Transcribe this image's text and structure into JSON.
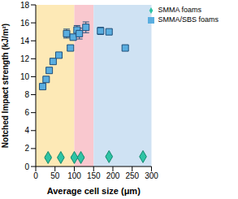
{
  "chart_data": {
    "type": "scatter",
    "xlabel": "Average cell size (μm)",
    "ylabel": "Notched Impact strength (kJ/m²)",
    "xlim": [
      0,
      300
    ],
    "xticks": [
      0,
      50,
      100,
      150,
      200,
      250,
      300
    ],
    "ylim": [
      0,
      18
    ],
    "yticks": [
      0,
      2,
      4,
      6,
      8,
      10,
      12,
      14,
      16,
      18
    ],
    "legend": "upper right",
    "regions": [
      {
        "x1": 0,
        "x2": 100,
        "color": "#fde9b6"
      },
      {
        "x1": 100,
        "x2": 150,
        "color": "#f9c8cf"
      },
      {
        "x1": 150,
        "x2": 300,
        "color": "#cfe2f3"
      }
    ],
    "series": [
      {
        "name": "SMMA/SBS foams",
        "color": "#5aaee0",
        "marker": "square",
        "x": [
          18,
          27,
          35,
          45,
          60,
          80,
          90,
          97,
          107,
          113,
          130,
          168,
          190,
          232
        ],
        "values": [
          8.9,
          9.7,
          10.7,
          11.7,
          12.4,
          14.8,
          13.2,
          14.4,
          15.2,
          14.8,
          15.5,
          15.1,
          15.0,
          13.2
        ],
        "errors": [
          0.2,
          0.2,
          0.3,
          0.2,
          0.3,
          0.5,
          0.3,
          0.3,
          0.5,
          0.6,
          0.6,
          0.4,
          0.2,
          0.2
        ]
      },
      {
        "name": "SMMA foams",
        "color": "#2ec4a5",
        "marker": "diamond",
        "x": [
          32,
          65,
          100,
          117,
          190,
          278
        ],
        "values": [
          1.0,
          1.0,
          1.0,
          1.0,
          1.1,
          1.1
        ],
        "errors": [
          0.15,
          0.1,
          0.1,
          0.1,
          0.1,
          0.1
        ]
      }
    ]
  }
}
